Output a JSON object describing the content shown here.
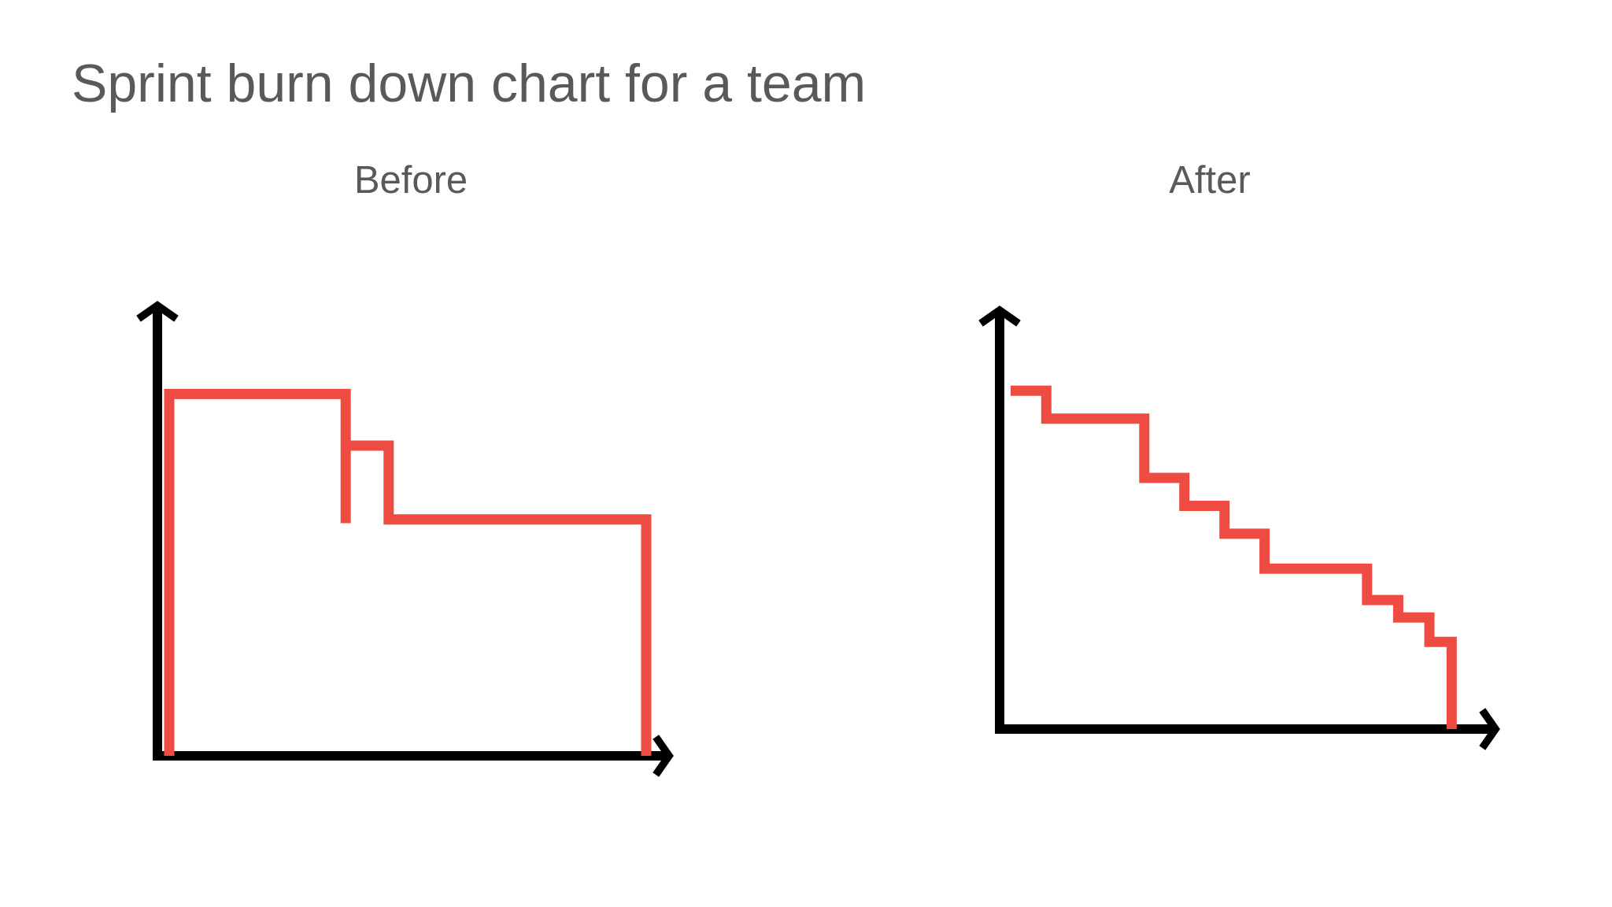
{
  "slide": {
    "title": "Sprint burn down chart for a team"
  },
  "colors": {
    "title_text": "#595959",
    "axis": "#000000",
    "burndown_line": "#ee4b43"
  },
  "chart_data": [
    {
      "type": "line",
      "title": "Before",
      "xlabel": "",
      "ylabel": "",
      "grid": false,
      "legend": "none",
      "xlim": [
        0,
        10
      ],
      "ylim": [
        0,
        10
      ],
      "series": [
        {
          "x": [
            0,
            0,
            3.7,
            3.7,
            3.7,
            4.6,
            4.6,
            10,
            10
          ],
          "y": [
            0,
            9.8,
            9.8,
            6.3,
            8.4,
            8.4,
            6.4,
            6.4,
            0
          ]
        }
      ]
    },
    {
      "type": "line",
      "title": "After",
      "xlabel": "",
      "ylabel": "",
      "grid": false,
      "legend": "none",
      "xlim": [
        0,
        10
      ],
      "ylim": [
        0,
        10
      ],
      "series": [
        {
          "x": [
            0,
            0.8,
            0.8,
            3.0,
            3.0,
            3.9,
            3.9,
            4.8,
            4.8,
            5.7,
            5.7,
            8.0,
            8.0,
            8.7,
            8.7,
            9.4,
            9.4,
            9.9,
            9.9
          ],
          "y": [
            9.7,
            9.7,
            8.9,
            8.9,
            7.2,
            7.2,
            6.4,
            6.4,
            5.6,
            5.6,
            4.6,
            4.6,
            3.7,
            3.7,
            3.2,
            3.2,
            2.5,
            2.5,
            0
          ]
        }
      ]
    }
  ]
}
